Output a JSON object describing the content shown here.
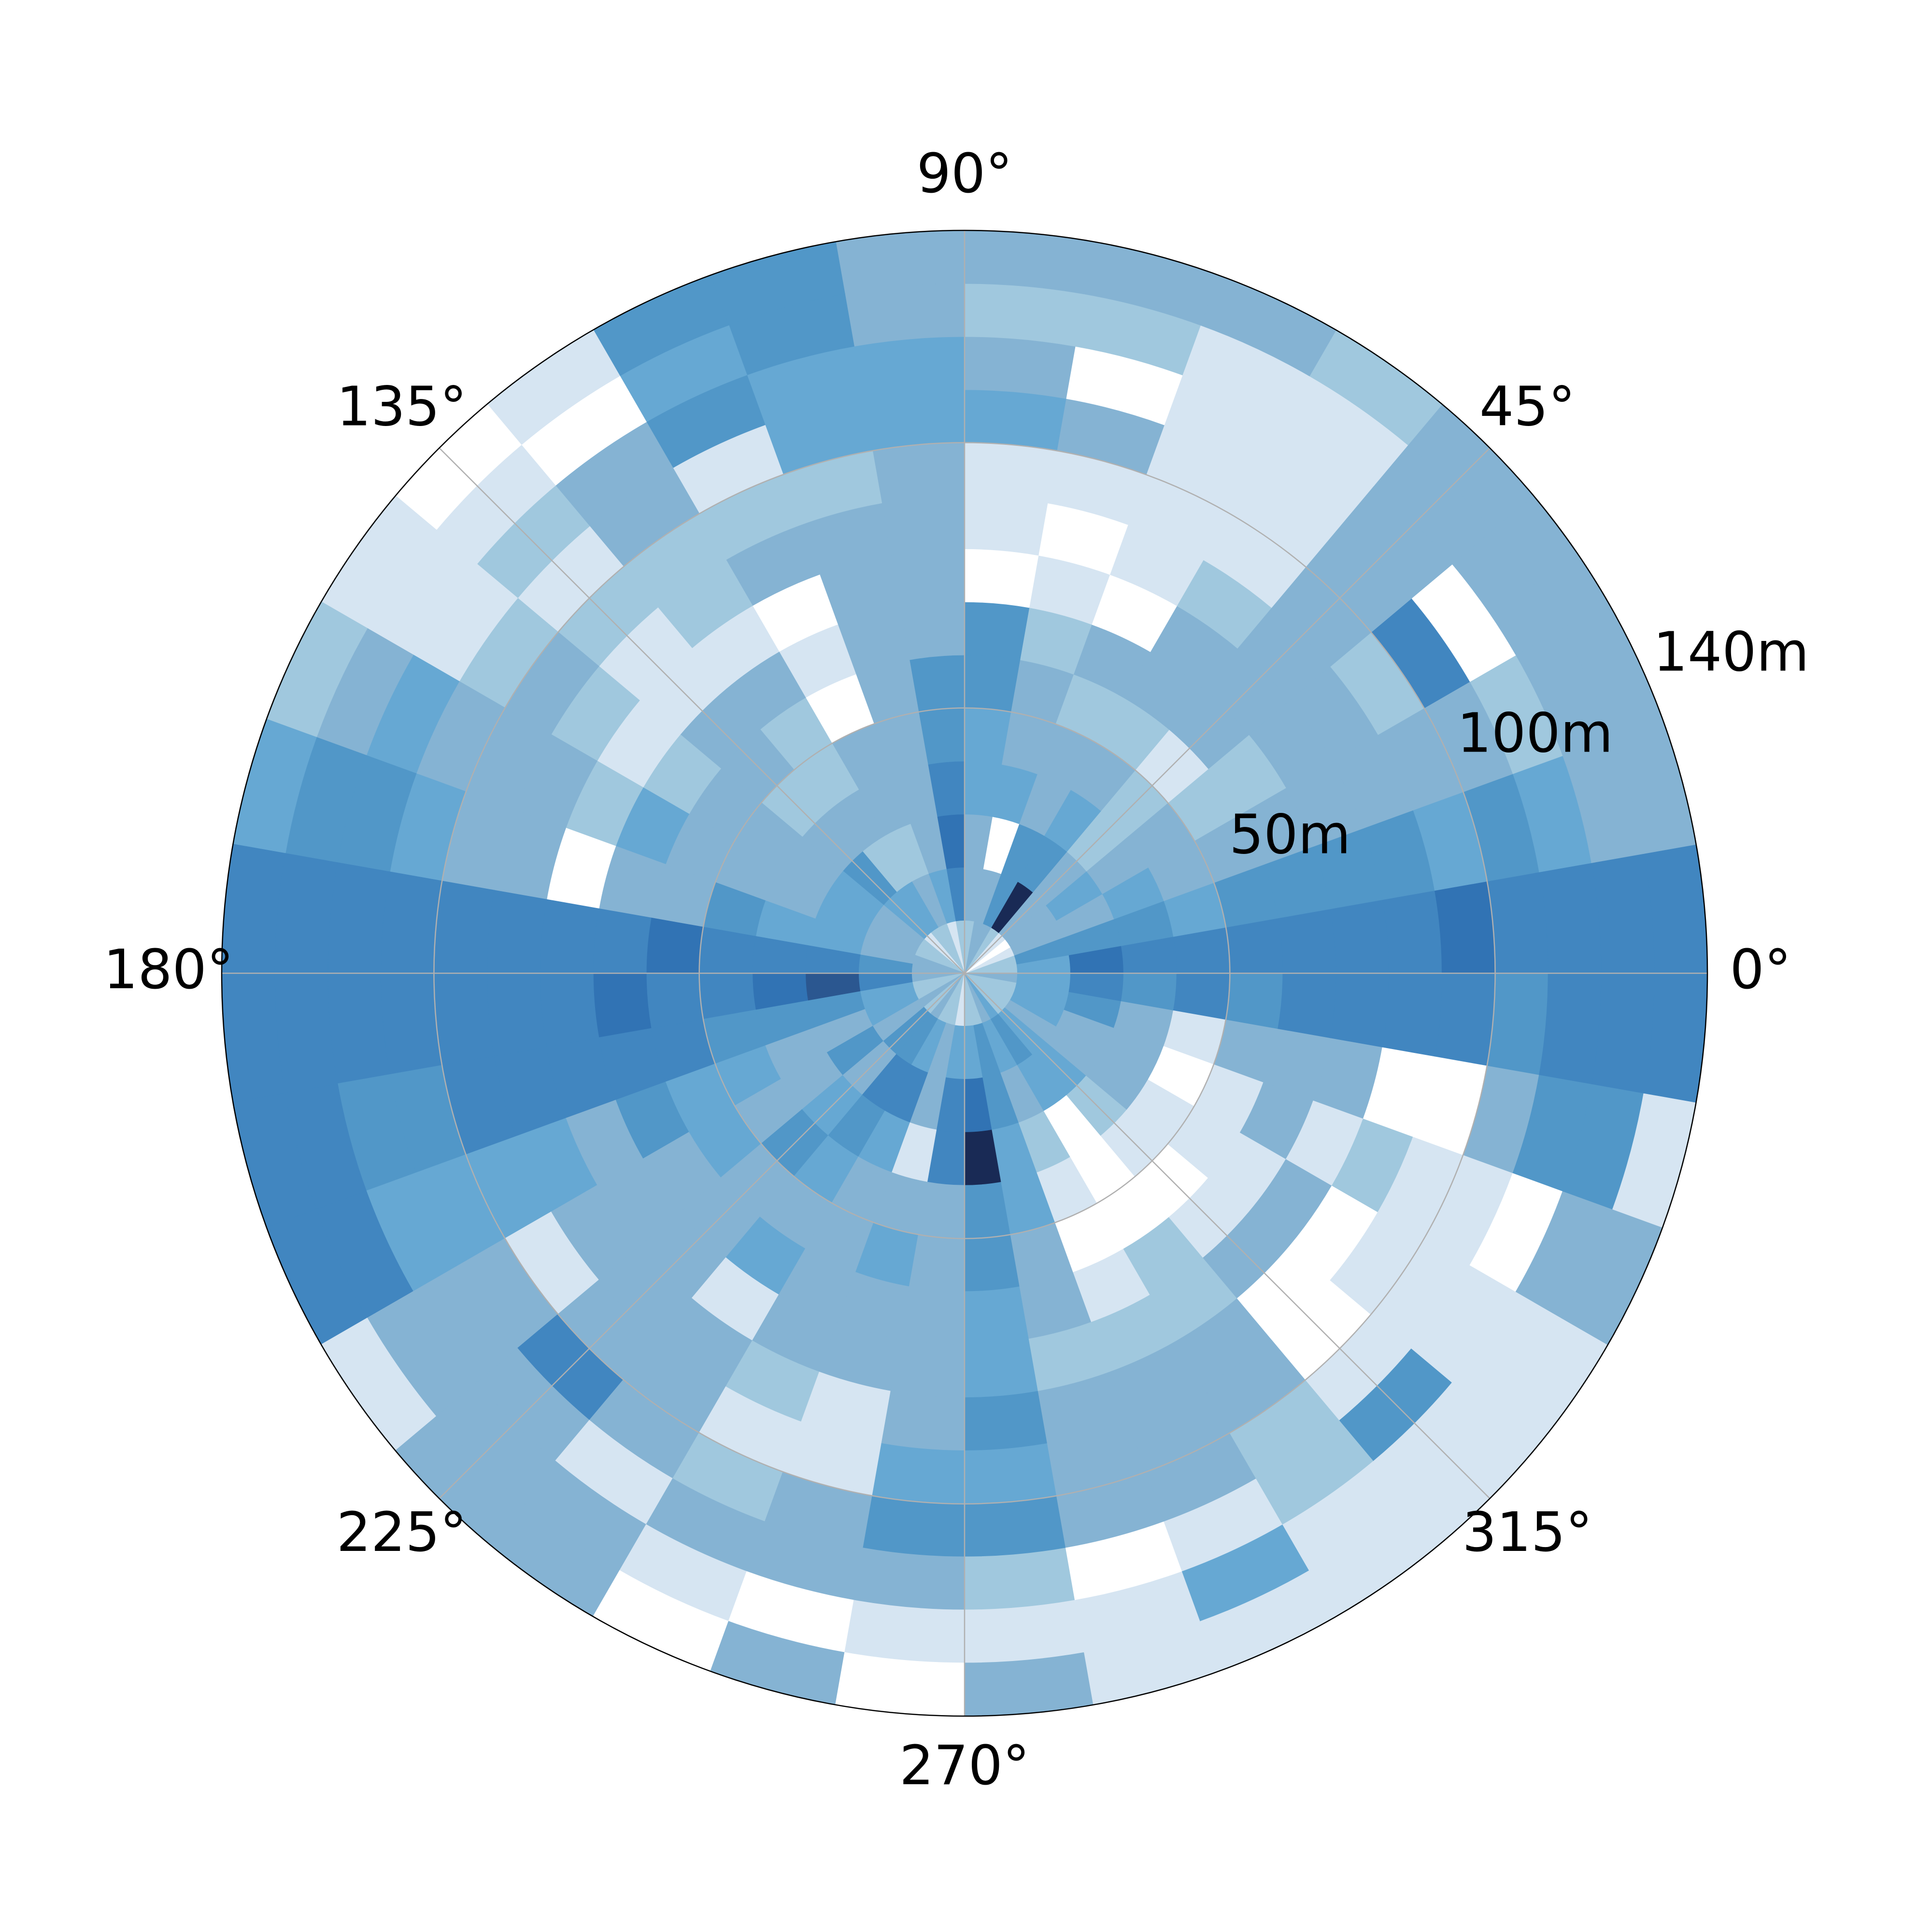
{
  "chart_data": {
    "type": "polar-heatmap",
    "theta_bins": [
      0,
      10,
      20,
      30,
      40,
      50,
      60,
      70,
      80,
      90,
      100,
      110,
      120,
      130,
      140,
      150,
      160,
      170,
      180,
      190,
      200,
      210,
      220,
      230,
      240,
      250,
      260,
      270,
      280,
      290,
      300,
      310,
      320,
      330,
      340,
      350,
      360
    ],
    "r_bins": [
      0,
      10,
      20,
      30,
      40,
      50,
      60,
      70,
      80,
      90,
      100,
      110,
      120,
      130,
      140
    ],
    "rlim": [
      0,
      140
    ],
    "rticks": [
      {
        "value": 50,
        "label": "50m"
      },
      {
        "value": 100,
        "label": "100m"
      },
      {
        "value": 140,
        "label": "140m"
      }
    ],
    "thetaticks": [
      {
        "value": 0,
        "label": "0°"
      },
      {
        "value": 45,
        "label": "45°"
      },
      {
        "value": 90,
        "label": "90°"
      },
      {
        "value": 135,
        "label": "135°"
      },
      {
        "value": 180,
        "label": "180°"
      },
      {
        "value": 225,
        "label": "225°"
      },
      {
        "value": 270,
        "label": "270°"
      },
      {
        "value": 315,
        "label": "315°"
      }
    ],
    "grid": true,
    "colormap": [
      "#ffffff",
      "#d6e5f2",
      "#a0c8de",
      "#85b3d3",
      "#66a8d3",
      "#5197c8",
      "#4186c0",
      "#3173b4",
      "#2b5790",
      "#192a55"
    ],
    "values": [
      [
        2,
        4,
        7,
        6,
        6,
        6,
        6,
        6,
        6,
        7,
        6,
        6,
        6,
        6
      ],
      [
        2,
        5,
        5,
        5,
        4,
        5,
        5,
        5,
        5,
        4,
        5,
        4,
        3,
        3
      ],
      [
        1,
        3,
        3,
        4,
        3,
        3,
        3,
        3,
        3,
        3,
        3,
        2,
        3,
        3
      ],
      [
        0,
        3,
        4,
        3,
        3,
        2,
        2,
        3,
        3,
        2,
        6,
        0,
        3,
        3
      ],
      [
        1,
        3,
        3,
        2,
        2,
        1,
        3,
        3,
        3,
        3,
        3,
        3,
        3,
        3
      ],
      [
        2,
        9,
        5,
        4,
        3,
        2,
        3,
        3,
        2,
        1,
        1,
        1,
        1,
        2
      ],
      [
        3,
        5,
        5,
        3,
        3,
        2,
        3,
        0,
        1,
        1,
        1,
        1,
        1,
        3
      ],
      [
        3,
        3,
        0,
        4,
        3,
        3,
        2,
        1,
        0,
        1,
        3,
        0,
        2,
        3
      ],
      [
        2,
        3,
        3,
        4,
        4,
        5,
        5,
        0,
        1,
        1,
        4,
        3,
        2,
        3
      ],
      [
        2,
        6,
        7,
        6,
        5,
        5,
        3,
        3,
        3,
        3,
        4,
        4,
        3,
        3
      ],
      [
        1,
        4,
        3,
        3,
        3,
        3,
        3,
        3,
        3,
        2,
        4,
        4,
        5,
        5
      ],
      [
        2,
        3,
        2,
        3,
        3,
        0,
        1,
        0,
        3,
        2,
        1,
        5,
        4,
        5
      ],
      [
        2,
        4,
        2,
        3,
        2,
        2,
        3,
        1,
        2,
        2,
        3,
        3,
        0,
        1
      ],
      [
        1,
        4,
        5,
        3,
        2,
        3,
        3,
        1,
        1,
        2,
        1,
        2,
        1,
        0
      ],
      [
        2,
        3,
        4,
        3,
        3,
        3,
        2,
        1,
        2,
        3,
        2,
        1,
        1,
        1
      ],
      [
        2,
        3,
        4,
        3,
        3,
        3,
        4,
        2,
        3,
        3,
        3,
        4,
        3,
        2
      ],
      [
        3,
        3,
        4,
        4,
        5,
        3,
        3,
        0,
        3,
        3,
        4,
        5,
        5,
        4
      ],
      [
        3,
        5,
        6,
        6,
        6,
        7,
        6,
        6,
        6,
        6,
        6,
        6,
        6,
        6
      ],
      [
        3,
        6,
        8,
        7,
        6,
        6,
        7,
        6,
        6,
        6,
        6,
        6,
        6,
        6
      ],
      [
        2,
        4,
        5,
        5,
        5,
        6,
        6,
        6,
        6,
        6,
        5,
        5,
        6,
        6
      ],
      [
        2,
        4,
        3,
        3,
        4,
        4,
        5,
        3,
        4,
        4,
        4,
        4,
        6,
        6
      ],
      [
        3,
        3,
        5,
        3,
        3,
        4,
        3,
        3,
        3,
        1,
        3,
        3,
        3,
        1
      ],
      [
        2,
        5,
        3,
        4,
        5,
        3,
        3,
        3,
        3,
        3,
        6,
        3,
        3,
        3
      ],
      [
        3,
        5,
        6,
        5,
        4,
        3,
        4,
        1,
        3,
        3,
        3,
        1,
        3,
        3
      ],
      [
        2,
        4,
        6,
        4,
        3,
        3,
        3,
        3,
        2,
        1,
        2,
        3,
        1,
        0
      ],
      [
        2,
        3,
        3,
        1,
        3,
        4,
        3,
        3,
        1,
        1,
        3,
        3,
        0,
        3
      ],
      [
        1,
        4,
        6,
        6,
        3,
        3,
        3,
        3,
        3,
        4,
        5,
        3,
        1,
        0
      ],
      [
        2,
        4,
        7,
        9,
        5,
        5,
        4,
        4,
        5,
        4,
        5,
        2,
        1,
        3
      ],
      [
        2,
        5,
        5,
        4,
        4,
        3,
        3,
        2,
        3,
        3,
        3,
        0,
        1,
        1
      ],
      [
        3,
        4,
        3,
        2,
        1,
        0,
        1,
        2,
        3,
        3,
        3,
        1,
        4,
        1
      ],
      [
        4,
        5,
        4,
        0,
        0,
        0,
        2,
        2,
        3,
        3,
        2,
        2,
        1,
        1
      ],
      [
        2,
        4,
        4,
        2,
        1,
        0,
        1,
        3,
        0,
        0,
        1,
        5,
        1,
        1
      ],
      [
        2,
        3,
        3,
        3,
        1,
        1,
        1,
        3,
        0,
        1,
        1,
        1,
        1,
        1
      ],
      [
        2,
        4,
        3,
        3,
        0,
        1,
        3,
        1,
        2,
        1,
        1,
        0,
        3,
        3
      ],
      [
        2,
        4,
        5,
        3,
        1,
        3,
        3,
        3,
        0,
        0,
        3,
        5,
        5,
        1
      ],
      [
        3,
        4,
        6,
        5,
        6,
        5,
        6,
        6,
        6,
        6,
        5,
        6,
        6,
        6
      ]
    ]
  }
}
